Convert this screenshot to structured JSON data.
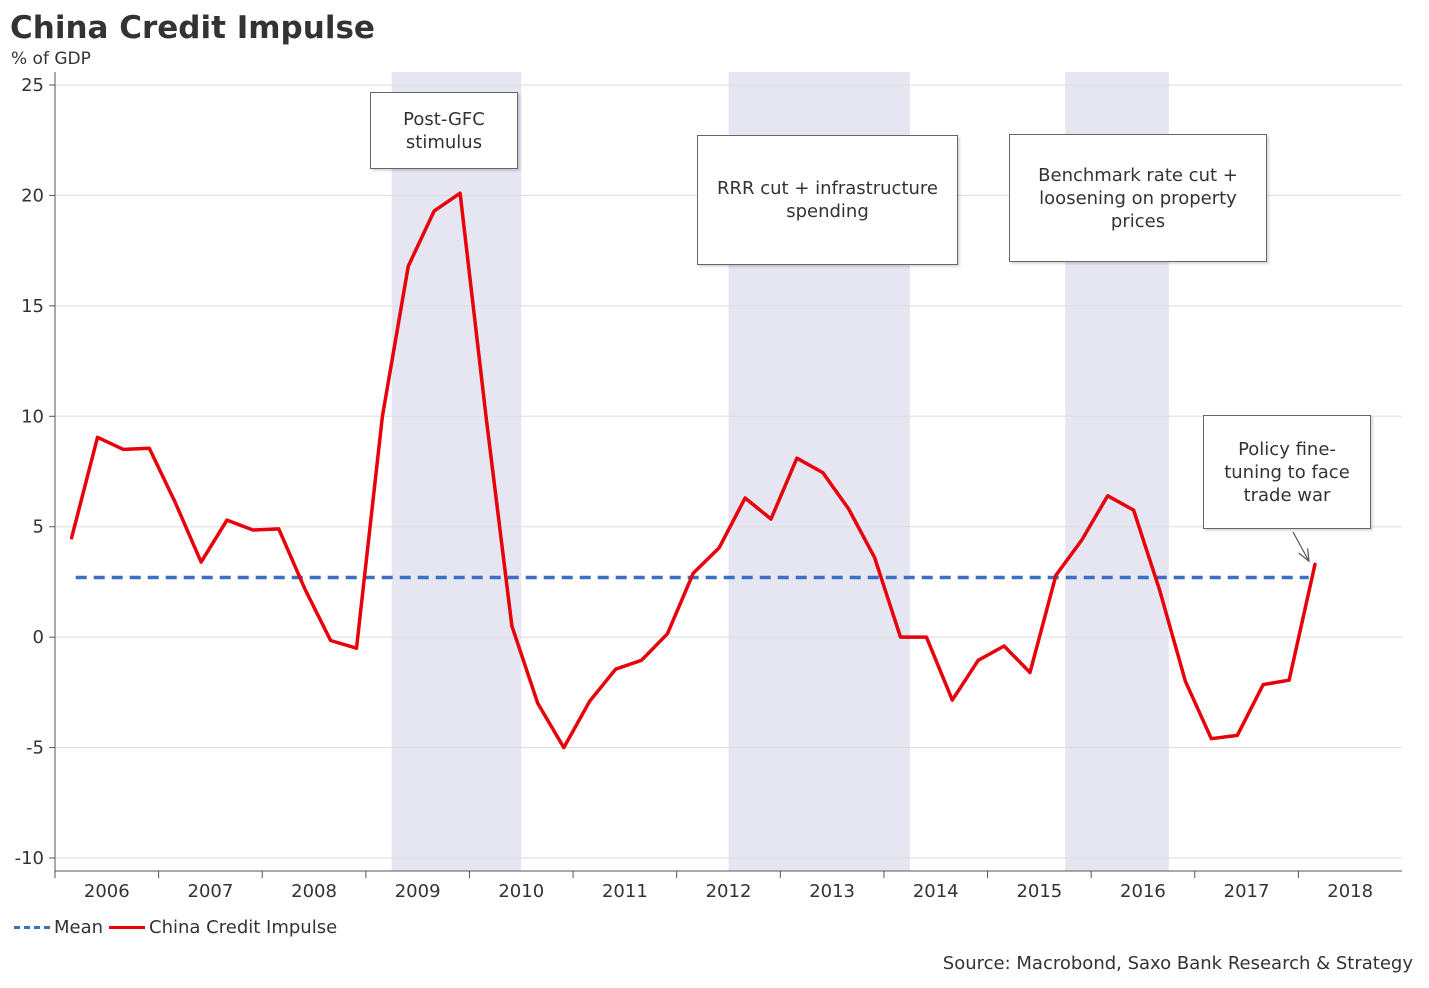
{
  "chart_data": {
    "type": "line",
    "title": "China Credit Impulse",
    "ylabel": "% of GDP",
    "ylim": [
      -10,
      25
    ],
    "yticks": [
      25,
      20,
      15,
      10,
      5,
      0,
      -5,
      -10
    ],
    "ytick_labels": [
      "25",
      "20",
      "15",
      "10",
      "5",
      "0",
      "-5",
      "-10"
    ],
    "x_tick_labels": [
      "2006",
      "2007",
      "2008",
      "2009",
      "2010",
      "2011",
      "2012",
      "2013",
      "2014",
      "2015",
      "2016",
      "2017",
      "2018"
    ],
    "xlim": [
      2005.5,
      2018.5
    ],
    "grid": true,
    "legend_position": "bottom-left",
    "series": [
      {
        "name": "China Credit Impulse",
        "color": "#e8000a",
        "points": [
          [
            2005.66,
            4.5
          ],
          [
            2005.91,
            9.05
          ],
          [
            2006.16,
            8.5
          ],
          [
            2006.41,
            8.55
          ],
          [
            2006.66,
            6.1
          ],
          [
            2006.91,
            3.4
          ],
          [
            2007.16,
            5.3
          ],
          [
            2007.41,
            4.85
          ],
          [
            2007.66,
            4.9
          ],
          [
            2007.91,
            2.2
          ],
          [
            2008.16,
            -0.15
          ],
          [
            2008.41,
            -0.5
          ],
          [
            2008.66,
            10.0
          ],
          [
            2008.91,
            16.8
          ],
          [
            2009.16,
            19.3
          ],
          [
            2009.41,
            20.1
          ],
          [
            2009.66,
            10.0
          ],
          [
            2009.91,
            0.5
          ],
          [
            2010.16,
            -3.0
          ],
          [
            2010.41,
            -5.0
          ],
          [
            2010.66,
            -2.9
          ],
          [
            2010.91,
            -1.45
          ],
          [
            2011.16,
            -1.05
          ],
          [
            2011.41,
            0.15
          ],
          [
            2011.66,
            2.9
          ],
          [
            2011.91,
            4.05
          ],
          [
            2012.16,
            6.3
          ],
          [
            2012.41,
            5.35
          ],
          [
            2012.66,
            8.1
          ],
          [
            2012.91,
            7.45
          ],
          [
            2013.16,
            5.8
          ],
          [
            2013.41,
            3.6
          ],
          [
            2013.66,
            0.0
          ],
          [
            2013.91,
            0.0
          ],
          [
            2014.16,
            -2.85
          ],
          [
            2014.41,
            -1.05
          ],
          [
            2014.66,
            -0.4
          ],
          [
            2014.91,
            -1.6
          ],
          [
            2015.16,
            2.8
          ],
          [
            2015.41,
            4.4
          ],
          [
            2015.66,
            6.4
          ],
          [
            2015.91,
            5.75
          ],
          [
            2016.16,
            2.15
          ],
          [
            2016.41,
            -2.0
          ],
          [
            2016.66,
            -4.6
          ],
          [
            2016.91,
            -4.45
          ],
          [
            2017.16,
            -2.15
          ],
          [
            2017.41,
            -1.95
          ],
          [
            2017.66,
            3.3
          ]
        ]
      },
      {
        "name": "Mean",
        "color": "#3a6fc4",
        "style": "dashed",
        "value": 2.7,
        "x": [
          2005.7,
          2017.6
        ]
      }
    ],
    "shaded_periods": [
      [
        2008.75,
        2010.0
      ],
      [
        2012.0,
        2013.75
      ],
      [
        2015.25,
        2016.25
      ]
    ],
    "annotations": [
      {
        "text": "Post-GFC\nstimulus"
      },
      {
        "text": "RRR cut + infrastructure\nspending"
      },
      {
        "text": "Benchmark rate cut +\nloosening on property\nprices"
      },
      {
        "text": "Policy fine-\ntuning to face\ntrade war"
      }
    ]
  },
  "legend": {
    "mean_label": "Mean",
    "impulse_label": "China Credit Impulse"
  },
  "source": "Source: Macrobond, Saxo Bank Research & Strategy"
}
